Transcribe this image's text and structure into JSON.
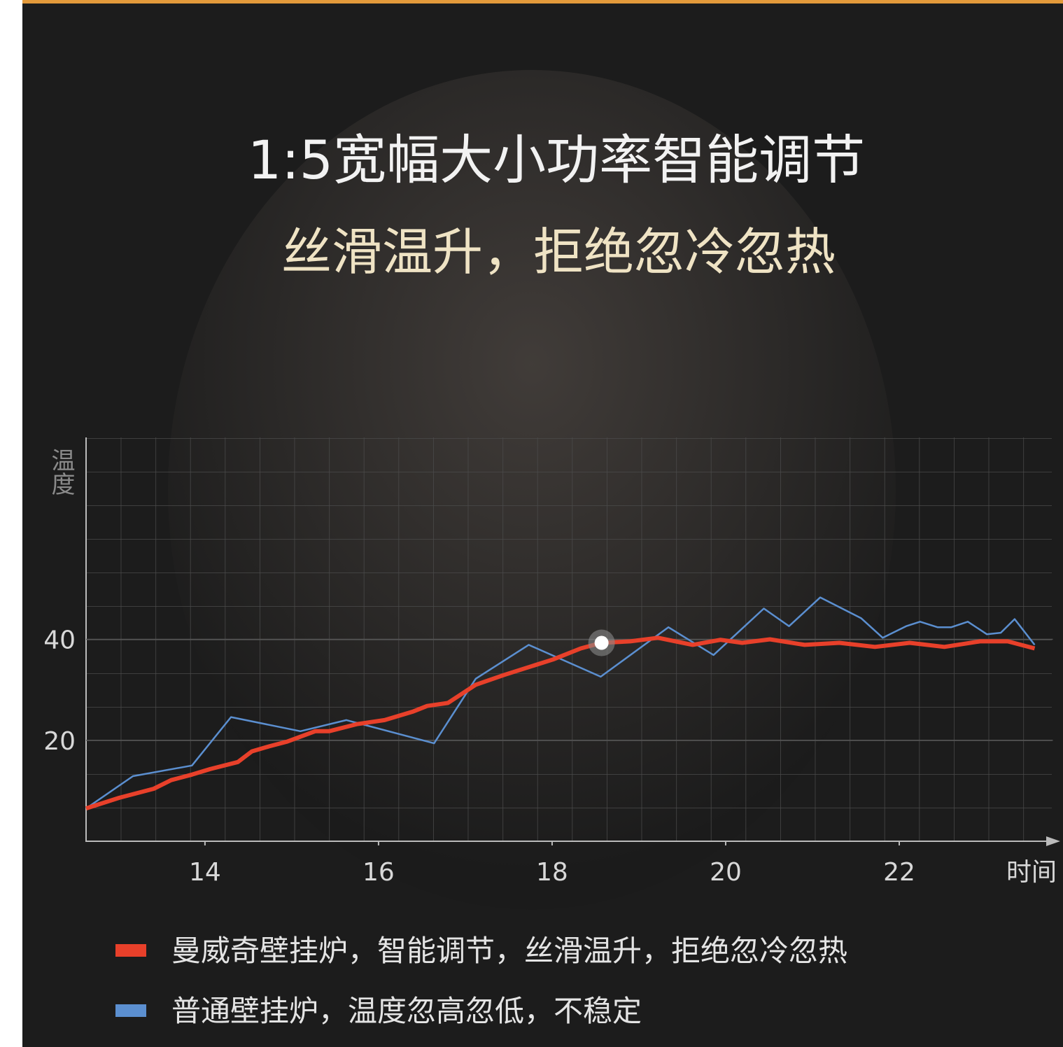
{
  "chart_data": {
    "type": "line",
    "title": "1:5宽幅大小功率智能调节",
    "subtitle": "丝滑温升，拒绝忽冷忽热",
    "y_label": "温度",
    "x_label": "时间",
    "xlim": [
      12.63,
      23.77
    ],
    "ylim": [
      0,
      80
    ],
    "xticks": [
      14,
      16,
      18,
      20,
      22
    ],
    "yticks": [
      20,
      40
    ],
    "series": [
      {
        "name": "曼威奇壁挂炉，智能调节，丝滑温升，拒绝忽冷忽热",
        "color": "#e8402a",
        "x": [
          12.63,
          13.01,
          13.41,
          13.61,
          13.85,
          14.06,
          14.38,
          14.54,
          14.74,
          14.94,
          15.27,
          15.43,
          15.75,
          16.07,
          16.4,
          16.56,
          16.8,
          17.12,
          17.44,
          17.77,
          18.01,
          18.33,
          18.57,
          18.9,
          19.22,
          19.62,
          19.94,
          20.19,
          20.51,
          20.91,
          21.31,
          21.72,
          22.12,
          22.52,
          22.93,
          23.25,
          23.56
        ],
        "values": [
          6.5,
          8.6,
          10.4,
          12.1,
          13.2,
          14.3,
          15.7,
          17.8,
          18.8,
          19.7,
          21.8,
          21.8,
          23.2,
          24.0,
          25.7,
          26.8,
          27.4,
          31.0,
          32.9,
          34.7,
          36.0,
          38.2,
          39.3,
          39.6,
          40.3,
          38.9,
          39.9,
          39.3,
          40.0,
          38.9,
          39.3,
          38.5,
          39.3,
          38.5,
          39.6,
          39.6,
          38.2
        ]
      },
      {
        "name": "普通壁挂炉，温度忽高忽低，不稳定",
        "color": "#5b8fd0",
        "x": [
          12.63,
          13.17,
          13.85,
          14.3,
          15.1,
          15.63,
          16.64,
          17.12,
          17.73,
          18.56,
          19.34,
          19.86,
          20.44,
          20.73,
          21.09,
          21.56,
          21.81,
          22.08,
          22.24,
          22.44,
          22.6,
          22.79,
          23.01,
          23.17,
          23.33,
          23.56
        ],
        "values": [
          6.5,
          12.9,
          15.0,
          24.6,
          21.8,
          24.0,
          19.4,
          32.2,
          38.9,
          32.6,
          42.4,
          36.9,
          46.1,
          42.6,
          48.3,
          44.2,
          40.3,
          42.6,
          43.5,
          42.4,
          42.4,
          43.5,
          41.0,
          41.3,
          44.0,
          38.9
        ]
      }
    ]
  }
}
